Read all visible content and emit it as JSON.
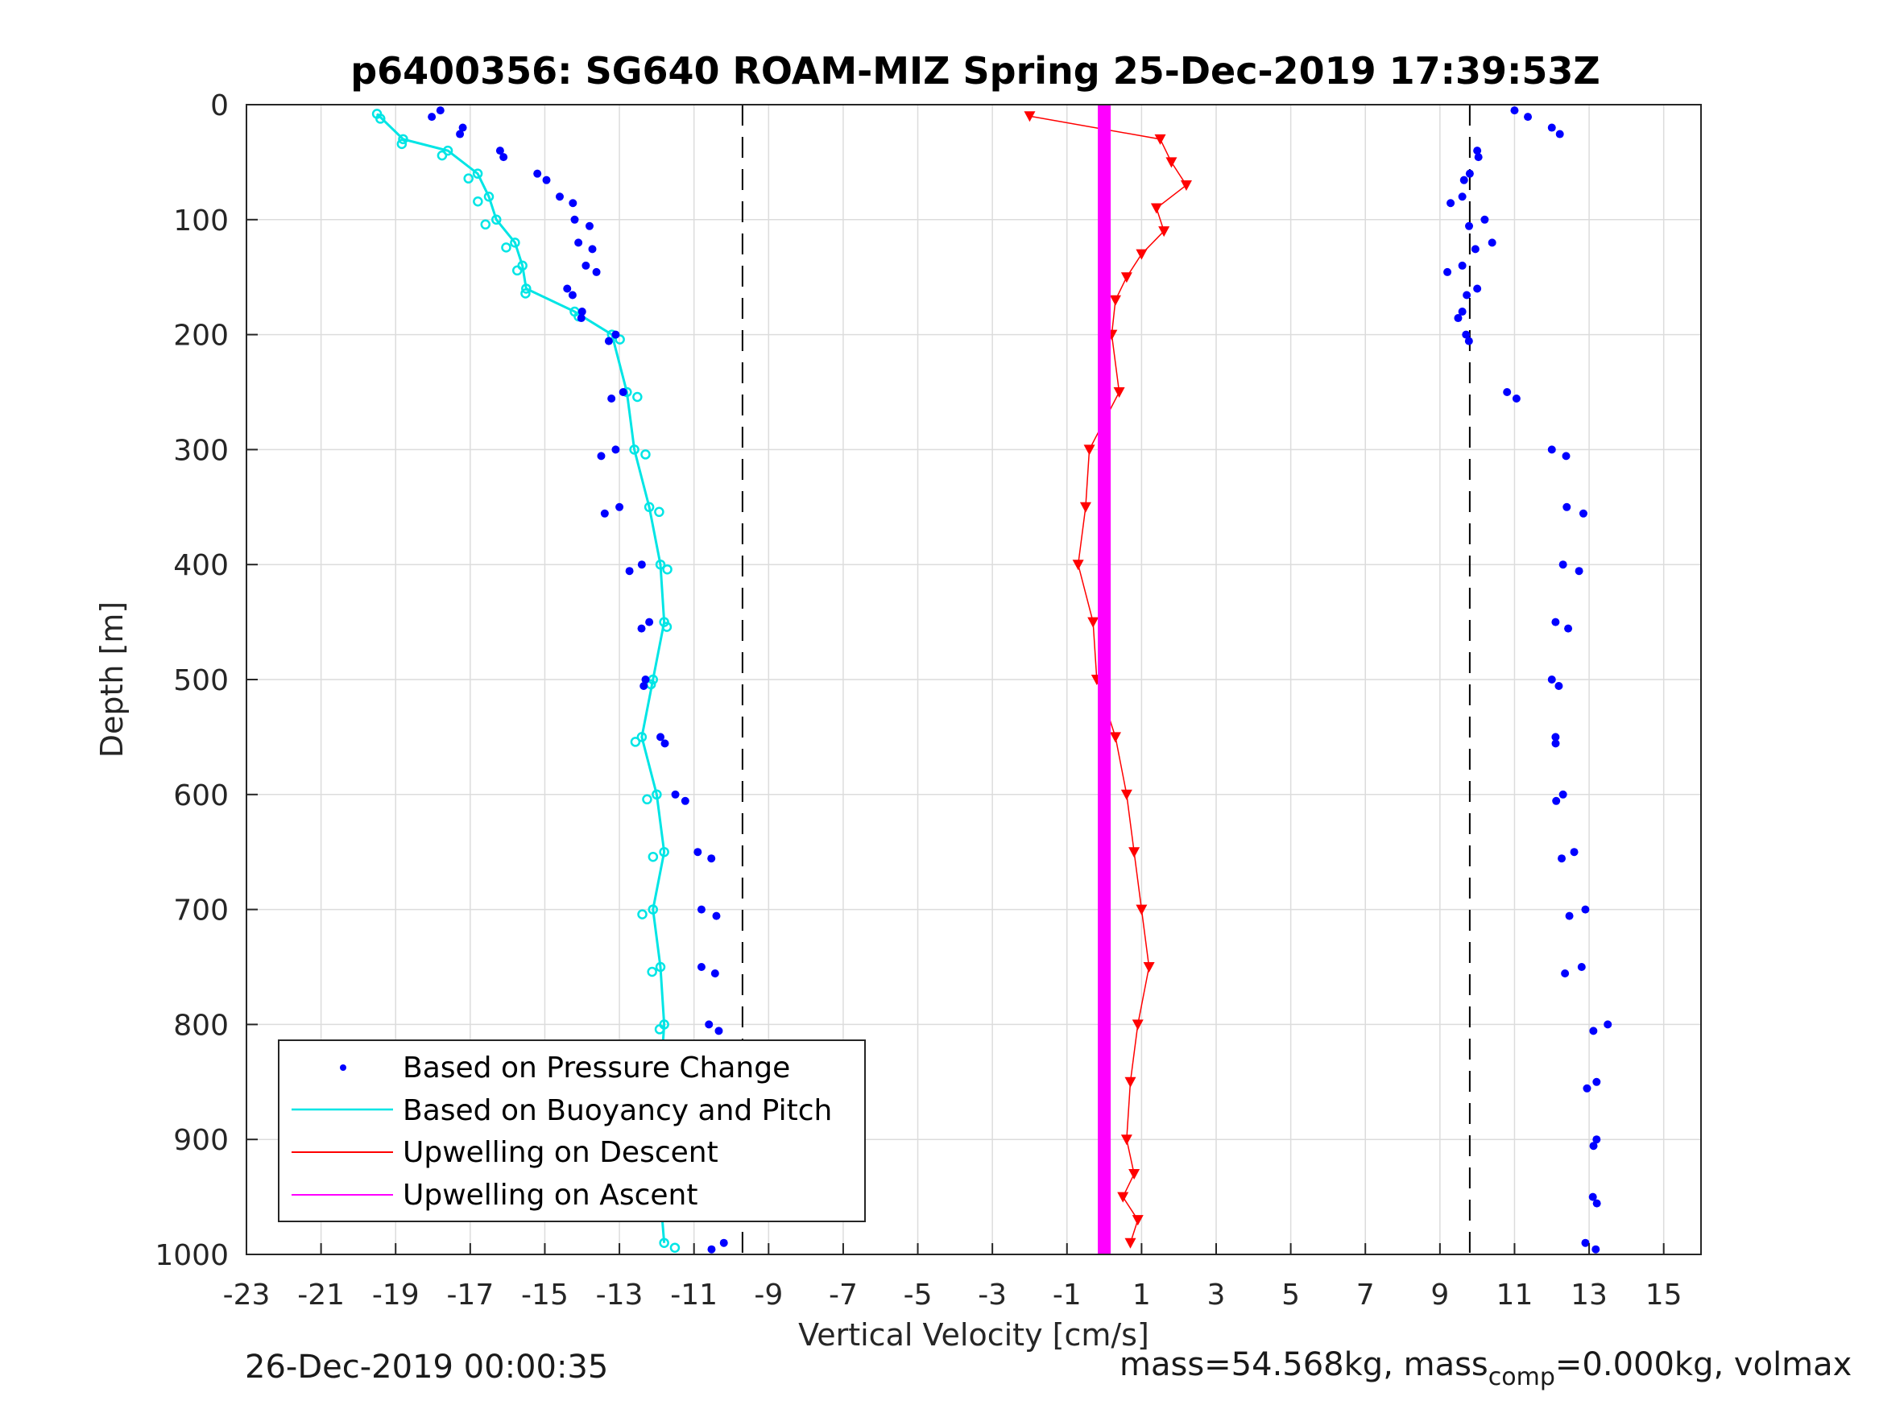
{
  "chart_data": {
    "type": "scatter",
    "title": "p6400356: SG640 ROAM-MIZ Spring 25-Dec-2019 17:39:53Z",
    "xlabel": "Vertical Velocity [cm/s]",
    "ylabel": "Depth [m]",
    "xlim": [
      -23,
      16
    ],
    "ylim": [
      0,
      1000
    ],
    "y_reversed": true,
    "xticks": [
      -23,
      -21,
      -19,
      -17,
      -15,
      -13,
      -11,
      -9,
      -7,
      -5,
      -3,
      -1,
      1,
      3,
      5,
      7,
      9,
      11,
      13,
      15
    ],
    "yticks": [
      0,
      100,
      200,
      300,
      400,
      500,
      600,
      700,
      800,
      900,
      1000
    ],
    "grid": true,
    "legend_position": "bottom-left",
    "reference_lines": [
      -9.7,
      9.8
    ],
    "series": [
      {
        "name": "Based on Pressure Change",
        "color": "#0000ff",
        "marker": "dot",
        "depth": [
          5,
          20,
          40,
          60,
          80,
          100,
          120,
          140,
          160,
          180,
          200,
          250,
          300,
          350,
          400,
          450,
          500,
          550,
          600,
          650,
          700,
          750,
          800,
          850,
          900,
          950,
          990
        ],
        "descent": [
          -17.8,
          -17.2,
          -16.2,
          -15.2,
          -14.6,
          -14.2,
          -14.1,
          -13.9,
          -14.4,
          -14.0,
          -13.1,
          -12.9,
          -13.1,
          -13.0,
          -12.4,
          -12.2,
          -12.3,
          -11.9,
          -11.5,
          -10.9,
          -10.8,
          -10.8,
          -10.6,
          -10.4,
          -10.4,
          -10.3,
          -10.2
        ],
        "ascent": [
          11.0,
          12.0,
          10.0,
          9.8,
          9.6,
          10.2,
          10.4,
          9.6,
          10.0,
          9.6,
          9.7,
          10.8,
          12.0,
          12.4,
          12.3,
          12.1,
          12.0,
          12.1,
          12.3,
          12.6,
          12.9,
          12.8,
          13.5,
          13.2,
          13.2,
          13.1,
          12.9
        ]
      },
      {
        "name": "Based on Buoyancy and Pitch",
        "color": "#00e5e5",
        "marker": "line-circle",
        "depth": [
          8,
          30,
          40,
          60,
          80,
          100,
          120,
          140,
          160,
          180,
          200,
          250,
          300,
          350,
          400,
          450,
          500,
          550,
          600,
          650,
          700,
          750,
          800,
          850,
          900,
          950,
          990
        ],
        "values": [
          -19.5,
          -18.8,
          -17.6,
          -16.8,
          -16.5,
          -16.3,
          -15.8,
          -15.6,
          -15.5,
          -14.2,
          -13.2,
          -12.8,
          -12.6,
          -12.2,
          -11.9,
          -11.8,
          -12.1,
          -12.4,
          -12.0,
          -11.8,
          -12.1,
          -11.9,
          -11.8,
          -11.9,
          -11.6,
          -11.9,
          -11.8
        ]
      },
      {
        "name": "Upwelling on Descent",
        "color": "#ff0000",
        "marker": "triangle-down",
        "depth": [
          10,
          30,
          50,
          70,
          90,
          110,
          130,
          150,
          170,
          200,
          250,
          300,
          350,
          400,
          450,
          500,
          550,
          600,
          650,
          700,
          750,
          800,
          850,
          900,
          930,
          950,
          970,
          990
        ],
        "values": [
          -2.0,
          1.5,
          1.8,
          2.2,
          1.4,
          1.6,
          1.0,
          0.6,
          0.3,
          0.2,
          0.4,
          -0.4,
          -0.5,
          -0.7,
          -0.3,
          -0.2,
          0.3,
          0.6,
          0.8,
          1.0,
          1.2,
          0.9,
          0.7,
          0.6,
          0.8,
          0.5,
          0.9,
          0.7
        ]
      },
      {
        "name": "Upwelling on Ascent",
        "color": "#ff00ff",
        "marker": "line",
        "depth": [
          0,
          1000
        ],
        "values": [
          0,
          0
        ]
      }
    ],
    "footer_left": "26-Dec-2019 00:00:35",
    "footer_right": {
      "text_a": "mass=54.568kg, mass",
      "sub": "comp",
      "text_b": "=0.000kg, volmax"
    }
  }
}
